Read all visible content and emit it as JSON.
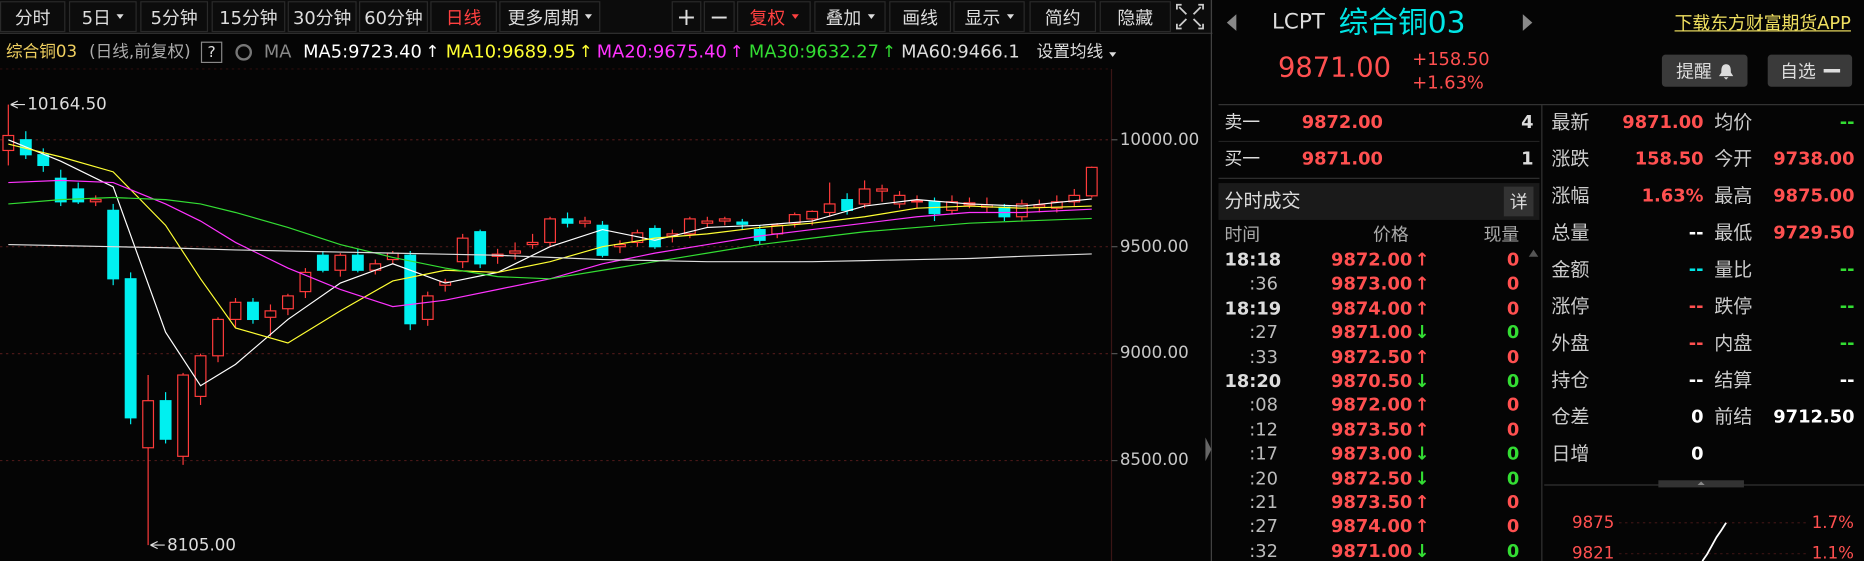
{
  "toolbar": {
    "periods": [
      "分时",
      "5日",
      "5分钟",
      "15分钟",
      "30分钟",
      "60分钟",
      "日线",
      "更多周期"
    ],
    "tools": [
      "+",
      "−",
      "复权",
      "叠加",
      "画线",
      "显示",
      "简约",
      "隐藏"
    ]
  },
  "legend": {
    "symbol": "综合铜03",
    "mode": "(日线,前复权)",
    "help": "?",
    "ma": "MA",
    "settings": "设置均线"
  },
  "chart_data": {
    "type": "candlestick",
    "up_color": "#ff3b3b",
    "down_color": "#00f0f0",
    "ylim": [
      8030,
      10320
    ],
    "yticks": [
      {
        "value": 8500,
        "label": "8500.00"
      },
      {
        "value": 9000,
        "label": "9000.00"
      },
      {
        "value": 9500,
        "label": "9500.00"
      },
      {
        "value": 10000,
        "label": "10000.00"
      }
    ],
    "grid": true,
    "ohlc": [
      [
        9950,
        10164.5,
        9880,
        10020
      ],
      [
        10000,
        10040,
        9910,
        9930
      ],
      [
        9930,
        9960,
        9850,
        9880
      ],
      [
        9820,
        9860,
        9690,
        9710
      ],
      [
        9770,
        9800,
        9700,
        9710
      ],
      [
        9710,
        9740,
        9690,
        9720
      ],
      [
        9670,
        9700,
        9320,
        9350
      ],
      [
        9350,
        9380,
        8670,
        8700
      ],
      [
        8560,
        8900,
        8105,
        8780
      ],
      [
        8780,
        8820,
        8580,
        8600
      ],
      [
        8520,
        8910,
        8480,
        8900
      ],
      [
        8800,
        9000,
        8760,
        8990
      ],
      [
        8990,
        9170,
        8960,
        9160
      ],
      [
        9160,
        9260,
        9120,
        9240
      ],
      [
        9240,
        9260,
        9140,
        9160
      ],
      [
        9170,
        9230,
        9080,
        9200
      ],
      [
        9210,
        9280,
        9180,
        9270
      ],
      [
        9290,
        9400,
        9260,
        9380
      ],
      [
        9460,
        9480,
        9380,
        9390
      ],
      [
        9390,
        9470,
        9360,
        9460
      ],
      [
        9460,
        9490,
        9380,
        9390
      ],
      [
        9390,
        9440,
        9370,
        9420
      ],
      [
        9440,
        9480,
        9420,
        9470
      ],
      [
        9460,
        9480,
        9110,
        9140
      ],
      [
        9160,
        9290,
        9130,
        9270
      ],
      [
        9320,
        9350,
        9290,
        9335
      ],
      [
        9430,
        9560,
        9400,
        9540
      ],
      [
        9570,
        9580,
        9400,
        9420
      ],
      [
        9455,
        9490,
        9420,
        9465
      ],
      [
        9470,
        9520,
        9440,
        9480
      ],
      [
        9510,
        9560,
        9490,
        9520
      ],
      [
        9520,
        9640,
        9500,
        9630
      ],
      [
        9630,
        9660,
        9590,
        9610
      ],
      [
        9610,
        9640,
        9590,
        9620
      ],
      [
        9600,
        9620,
        9450,
        9460
      ],
      [
        9500,
        9530,
        9470,
        9510
      ],
      [
        9520,
        9580,
        9500,
        9565
      ],
      [
        9585,
        9600,
        9490,
        9500
      ],
      [
        9550,
        9580,
        9520,
        9560
      ],
      [
        9560,
        9640,
        9540,
        9630
      ],
      [
        9610,
        9640,
        9590,
        9620
      ],
      [
        9620,
        9640,
        9600,
        9630
      ],
      [
        9615,
        9630,
        9580,
        9605
      ],
      [
        9580,
        9600,
        9510,
        9530
      ],
      [
        9560,
        9610,
        9540,
        9600
      ],
      [
        9610,
        9660,
        9590,
        9650
      ],
      [
        9630,
        9670,
        9600,
        9665
      ],
      [
        9660,
        9800,
        9640,
        9700
      ],
      [
        9720,
        9750,
        9650,
        9670
      ],
      [
        9700,
        9810,
        9680,
        9770
      ],
      [
        9760,
        9790,
        9710,
        9770
      ],
      [
        9700,
        9760,
        9680,
        9740
      ],
      [
        9710,
        9740,
        9680,
        9715
      ],
      [
        9710,
        9730,
        9620,
        9655
      ],
      [
        9670,
        9740,
        9650,
        9710
      ],
      [
        9695,
        9730,
        9680,
        9705
      ],
      [
        9685,
        9730,
        9660,
        9695
      ],
      [
        9685,
        9700,
        9620,
        9640
      ],
      [
        9640,
        9720,
        9620,
        9700
      ],
      [
        9685,
        9720,
        9660,
        9695
      ],
      [
        9680,
        9740,
        9660,
        9710
      ],
      [
        9710,
        9770,
        9690,
        9740
      ],
      [
        9738,
        9875,
        9729.5,
        9871
      ]
    ],
    "x": [
      0,
      3,
      6,
      9,
      11,
      13,
      16,
      19,
      22,
      25,
      28,
      31,
      34,
      37,
      40,
      43,
      46,
      49,
      52,
      55,
      58,
      62
    ],
    "series": [
      {
        "name": "MA5:9723.40",
        "trend": "↑",
        "color": "#ffffff",
        "values": [
          10000,
          9900,
          9780,
          9100,
          8850,
          8950,
          9160,
          9330,
          9420,
          9330,
          9380,
          9500,
          9580,
          9530,
          9590,
          9600,
          9620,
          9690,
          9720,
          9700,
          9690,
          9723.4
        ]
      },
      {
        "name": "MA10:9689.95",
        "trend": "↑",
        "color": "#ffff33",
        "values": [
          9980,
          9920,
          9850,
          9600,
          9350,
          9120,
          9050,
          9200,
          9340,
          9390,
          9380,
          9430,
          9500,
          9540,
          9560,
          9590,
          9610,
          9640,
          9680,
          9690,
          9680,
          9689.95
        ]
      },
      {
        "name": "MA20:9675.40",
        "trend": "↑",
        "color": "#ff33ff",
        "values": [
          9800,
          9810,
          9800,
          9700,
          9620,
          9520,
          9400,
          9300,
          9220,
          9250,
          9300,
          9350,
          9420,
          9470,
          9510,
          9550,
          9580,
          9610,
          9640,
          9660,
          9660,
          9675.4
        ]
      },
      {
        "name": "MA30:9632.27",
        "trend": "↑",
        "color": "#33dd33",
        "values": [
          9700,
          9720,
          9730,
          9720,
          9700,
          9660,
          9590,
          9510,
          9450,
          9400,
          9360,
          9350,
          9390,
          9430,
          9470,
          9510,
          9540,
          9570,
          9590,
          9610,
          9620,
          9632.27
        ]
      },
      {
        "name": "MA60:9466.1",
        "color": "#dddddd",
        "values": [
          9510,
          9505,
          9500,
          9495,
          9490,
          9485,
          9480,
          9475,
          9470,
          9465,
          9460,
          9450,
          9440,
          9435,
          9430,
          9430,
          9430,
          9435,
          9440,
          9445,
          9455,
          9466.1
        ]
      }
    ],
    "annotations": [
      {
        "value": 10164.5,
        "label": "10164.50"
      },
      {
        "value": 8105,
        "label": "8105.00"
      }
    ]
  },
  "quote": {
    "code": "LCPT",
    "name": "综合铜03",
    "app_link": "下载东方财富期货APP",
    "price": "9871.00",
    "change": "+158.50",
    "change_pct": "+1.63%",
    "alert": "提醒",
    "watch": "自选"
  },
  "order_book": [
    [
      "卖一",
      "9872.00",
      "4"
    ],
    [
      "买一",
      "9871.00",
      "1"
    ]
  ],
  "trades": {
    "title": "分时成交",
    "detail": "详",
    "columns": [
      "时间",
      "价格",
      "现量"
    ],
    "rows": [
      {
        "time": "18:18",
        "price": "9872.00",
        "dir": "↑",
        "volume": "0"
      },
      {
        "time": ":36",
        "price": "9873.00",
        "dir": "↑",
        "volume": "0"
      },
      {
        "time": "18:19",
        "price": "9874.00",
        "dir": "↑",
        "volume": "0"
      },
      {
        "time": ":27",
        "price": "9871.00",
        "dir": "↓",
        "volume": "0"
      },
      {
        "time": ":33",
        "price": "9872.50",
        "dir": "↑",
        "volume": "0"
      },
      {
        "time": "18:20",
        "price": "9870.50",
        "dir": "↓",
        "volume": "0"
      },
      {
        "time": ":08",
        "price": "9872.00",
        "dir": "↑",
        "volume": "0"
      },
      {
        "time": ":12",
        "price": "9873.50",
        "dir": "↑",
        "volume": "0"
      },
      {
        "time": ":17",
        "price": "9873.00",
        "dir": "↓",
        "volume": "0"
      },
      {
        "time": ":20",
        "price": "9872.50",
        "dir": "↓",
        "volume": "0"
      },
      {
        "time": ":21",
        "price": "9873.50",
        "dir": "↑",
        "volume": "0"
      },
      {
        "time": ":27",
        "price": "9874.00",
        "dir": "↑",
        "volume": "0"
      },
      {
        "time": ":32",
        "price": "9871.00",
        "dir": "↓",
        "volume": "0"
      }
    ]
  },
  "stats": [
    {
      "label": "最新",
      "value": "9871.00",
      "color": "#ff5050"
    },
    {
      "label": "均价",
      "value": "--",
      "color": "#33dd33"
    },
    {
      "label": "涨跌",
      "value": "158.50",
      "color": "#ff5050"
    },
    {
      "label": "今开",
      "value": "9738.00",
      "color": "#ff5050"
    },
    {
      "label": "涨幅",
      "value": "1.63%",
      "color": "#ff5050"
    },
    {
      "label": "最高",
      "value": "9875.00",
      "color": "#ff5050"
    },
    {
      "label": "总量",
      "value": "--",
      "color": "#ffffff"
    },
    {
      "label": "最低",
      "value": "9729.50",
      "color": "#ff5050"
    },
    {
      "label": "金额",
      "value": "--",
      "color": "#00e5e5"
    },
    {
      "label": "量比",
      "value": "--",
      "color": "#33dd33"
    },
    {
      "label": "涨停",
      "value": "--",
      "color": "#ff5050"
    },
    {
      "label": "跌停",
      "value": "--",
      "color": "#33dd33"
    },
    {
      "label": "外盘",
      "value": "--",
      "color": "#ff5050"
    },
    {
      "label": "内盘",
      "value": "--",
      "color": "#33dd33"
    },
    {
      "label": "持仓",
      "value": "--",
      "color": "#ffffff"
    },
    {
      "label": "结算",
      "value": "--",
      "color": "#ffffff"
    },
    {
      "label": "仓差",
      "value": "0",
      "color": "#ffffff"
    },
    {
      "label": "前结",
      "value": "9712.50",
      "color": "#ffffff"
    },
    {
      "label": "日增",
      "value": "0",
      "color": "#ffffff"
    }
  ],
  "mini_chart": {
    "type": "line",
    "ylim": [
      9808,
      9916
    ],
    "yticks": [
      9821,
      9875
    ],
    "y2ticks": [
      {
        "value": 1.1,
        "label": "1.1%"
      },
      {
        "value": 1.7,
        "label": "1.7%"
      }
    ],
    "values": [
      9808,
      9820,
      9835,
      9850,
      9862,
      9875
    ]
  }
}
